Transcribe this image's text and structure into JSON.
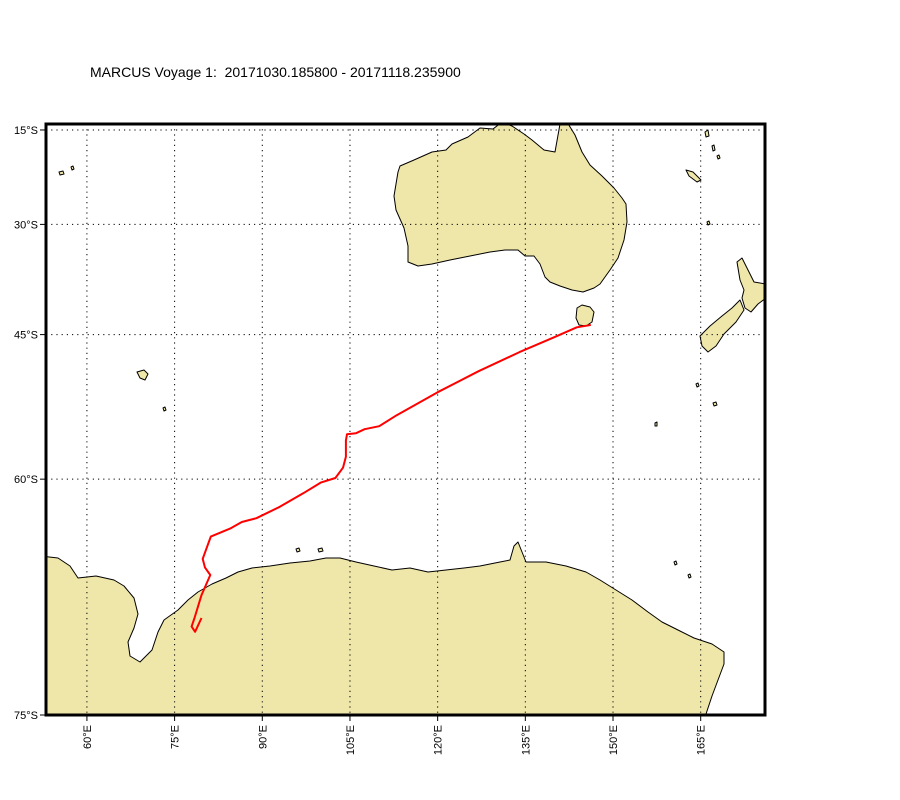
{
  "map": {
    "title": "MARCUS Voyage 1:  20171030.185800 - 20171118.235900",
    "extent": {
      "lon_min": 53,
      "lon_max": 176,
      "lat_min": -75,
      "lat_max": -14
    },
    "latitude_ticks": [
      {
        "value": -15,
        "label": "15°S"
      },
      {
        "value": -30,
        "label": "30°S"
      },
      {
        "value": -45,
        "label": "45°S"
      },
      {
        "value": -60,
        "label": "60°S"
      },
      {
        "value": -75,
        "label": "75°S"
      }
    ],
    "longitude_ticks": [
      {
        "value": 60,
        "label": "60°E"
      },
      {
        "value": 75,
        "label": "75°E"
      },
      {
        "value": 90,
        "label": "90°E"
      },
      {
        "value": 105,
        "label": "105°E"
      },
      {
        "value": 120,
        "label": "120°E"
      },
      {
        "value": 135,
        "label": "135°E"
      },
      {
        "value": 150,
        "label": "150°E"
      },
      {
        "value": 165,
        "label": "165°E"
      }
    ],
    "grid": true,
    "colors": {
      "land": "#efe6a9",
      "track": "#ff0000",
      "frame": "#000000"
    },
    "ship_track": [
      [
        146.2,
        -43.8
      ],
      [
        145.5,
        -43.9
      ],
      [
        143.8,
        -44.1
      ],
      [
        140,
        -45.3
      ],
      [
        134,
        -47.1
      ],
      [
        127,
        -49.3
      ],
      [
        120,
        -51.6
      ],
      [
        113,
        -54.0
      ],
      [
        110,
        -55.1
      ],
      [
        107.5,
        -55.4
      ],
      [
        106,
        -55.8
      ],
      [
        104.5,
        -55.9
      ],
      [
        104.3,
        -56.5
      ],
      [
        104.3,
        -58.0
      ],
      [
        103.8,
        -59.0
      ],
      [
        102.5,
        -59.9
      ],
      [
        100,
        -60.3
      ],
      [
        97,
        -61.2
      ],
      [
        93,
        -62.3
      ],
      [
        89,
        -63.2
      ],
      [
        86.5,
        -63.5
      ],
      [
        84.5,
        -64.0
      ],
      [
        81.2,
        -64.6
      ],
      [
        80.6,
        -65.3
      ],
      [
        79.8,
        -66.2
      ],
      [
        80.2,
        -66.8
      ],
      [
        81.1,
        -67.3
      ],
      [
        79.6,
        -68.6
      ],
      [
        78.4,
        -70.0
      ],
      [
        77.9,
        -70.5
      ],
      [
        78.5,
        -70.8
      ],
      [
        79.6,
        -70.0
      ]
    ]
  }
}
